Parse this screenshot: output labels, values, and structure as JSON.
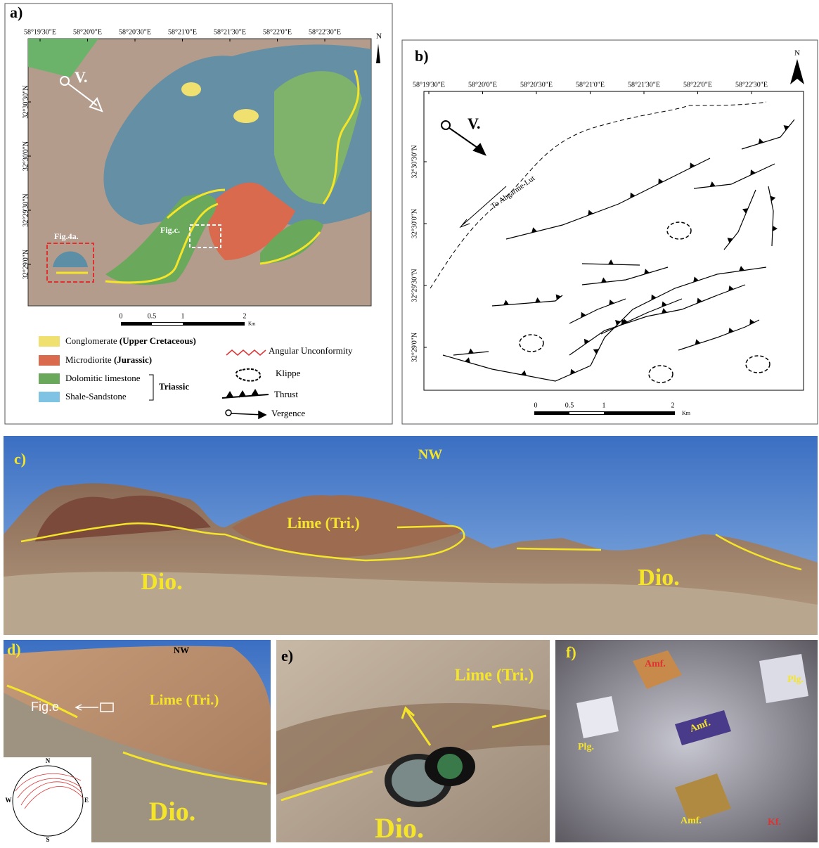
{
  "panel_a": {
    "label": "a)",
    "lon_ticks": [
      "58°19'30\"E",
      "58°20'0\"E",
      "58°20'30\"E",
      "58°21'0\"E",
      "58°21'30\"E",
      "58°22'0\"E",
      "58°22'30\"E"
    ],
    "lat_ticks": [
      "32°30'30\"N",
      "32°30'0\"N",
      "32°29'30\"N",
      "32°29'0\"N"
    ],
    "north": "N",
    "vergence": "V.",
    "fig4a": "Fig.4a.",
    "figc": "Fig.c.",
    "scale": [
      "0",
      "0.5",
      "1",
      "2"
    ],
    "scale_unit": "Km",
    "legend": {
      "conglomerate": "Conglomerate",
      "conglomerate_age": "(Upper Cretaceous)",
      "microdiorite": "Microdiorite",
      "microdiorite_age": "(Jurassic)",
      "dolomitic": "Dolomitic limestone",
      "shale": "Shale-Sandstone",
      "triassic": "Triassic",
      "unconformity": "Angular Unconformity",
      "klippe": "Klippe",
      "thrust": "Thrust",
      "vergence": "Vergence"
    }
  },
  "panel_b": {
    "label": "b)",
    "lon_ticks": [
      "58°19'30\"E",
      "58°20'0\"E",
      "58°20'30\"E",
      "58°21'0\"E",
      "58°21'30\"E",
      "58°22'0\"E",
      "58°22'30\"E"
    ],
    "lat_ticks": [
      "32°30'30\"N",
      "32°30'0\"N",
      "32°29'30\"N",
      "32°29'0\"N"
    ],
    "north": "N",
    "vergence": "V.",
    "road": "To Abgarme-Lut",
    "scale": [
      "0",
      "0.5",
      "1",
      "2"
    ],
    "scale_unit": "Km"
  },
  "panel_c": {
    "label": "c)",
    "direction": "NW",
    "lime": "Lime (Tri.)",
    "dio_left": "Dio.",
    "dio_right": "Dio."
  },
  "panel_d": {
    "label": "d)",
    "direction": "NW",
    "lime": "Lime (Tri.)",
    "fig_e": "Fig.e",
    "dio": "Dio.",
    "stereonet": {
      "n": "N",
      "e": "E",
      "s": "S",
      "w": "W"
    }
  },
  "panel_e": {
    "label": "e)",
    "lime": "Lime (Tri.)",
    "dio": "Dio."
  },
  "panel_f": {
    "label": "f)",
    "minerals": [
      "Amf.",
      "Plg.",
      "Amf.",
      "Plg.",
      "Amf.",
      "Kf."
    ]
  }
}
